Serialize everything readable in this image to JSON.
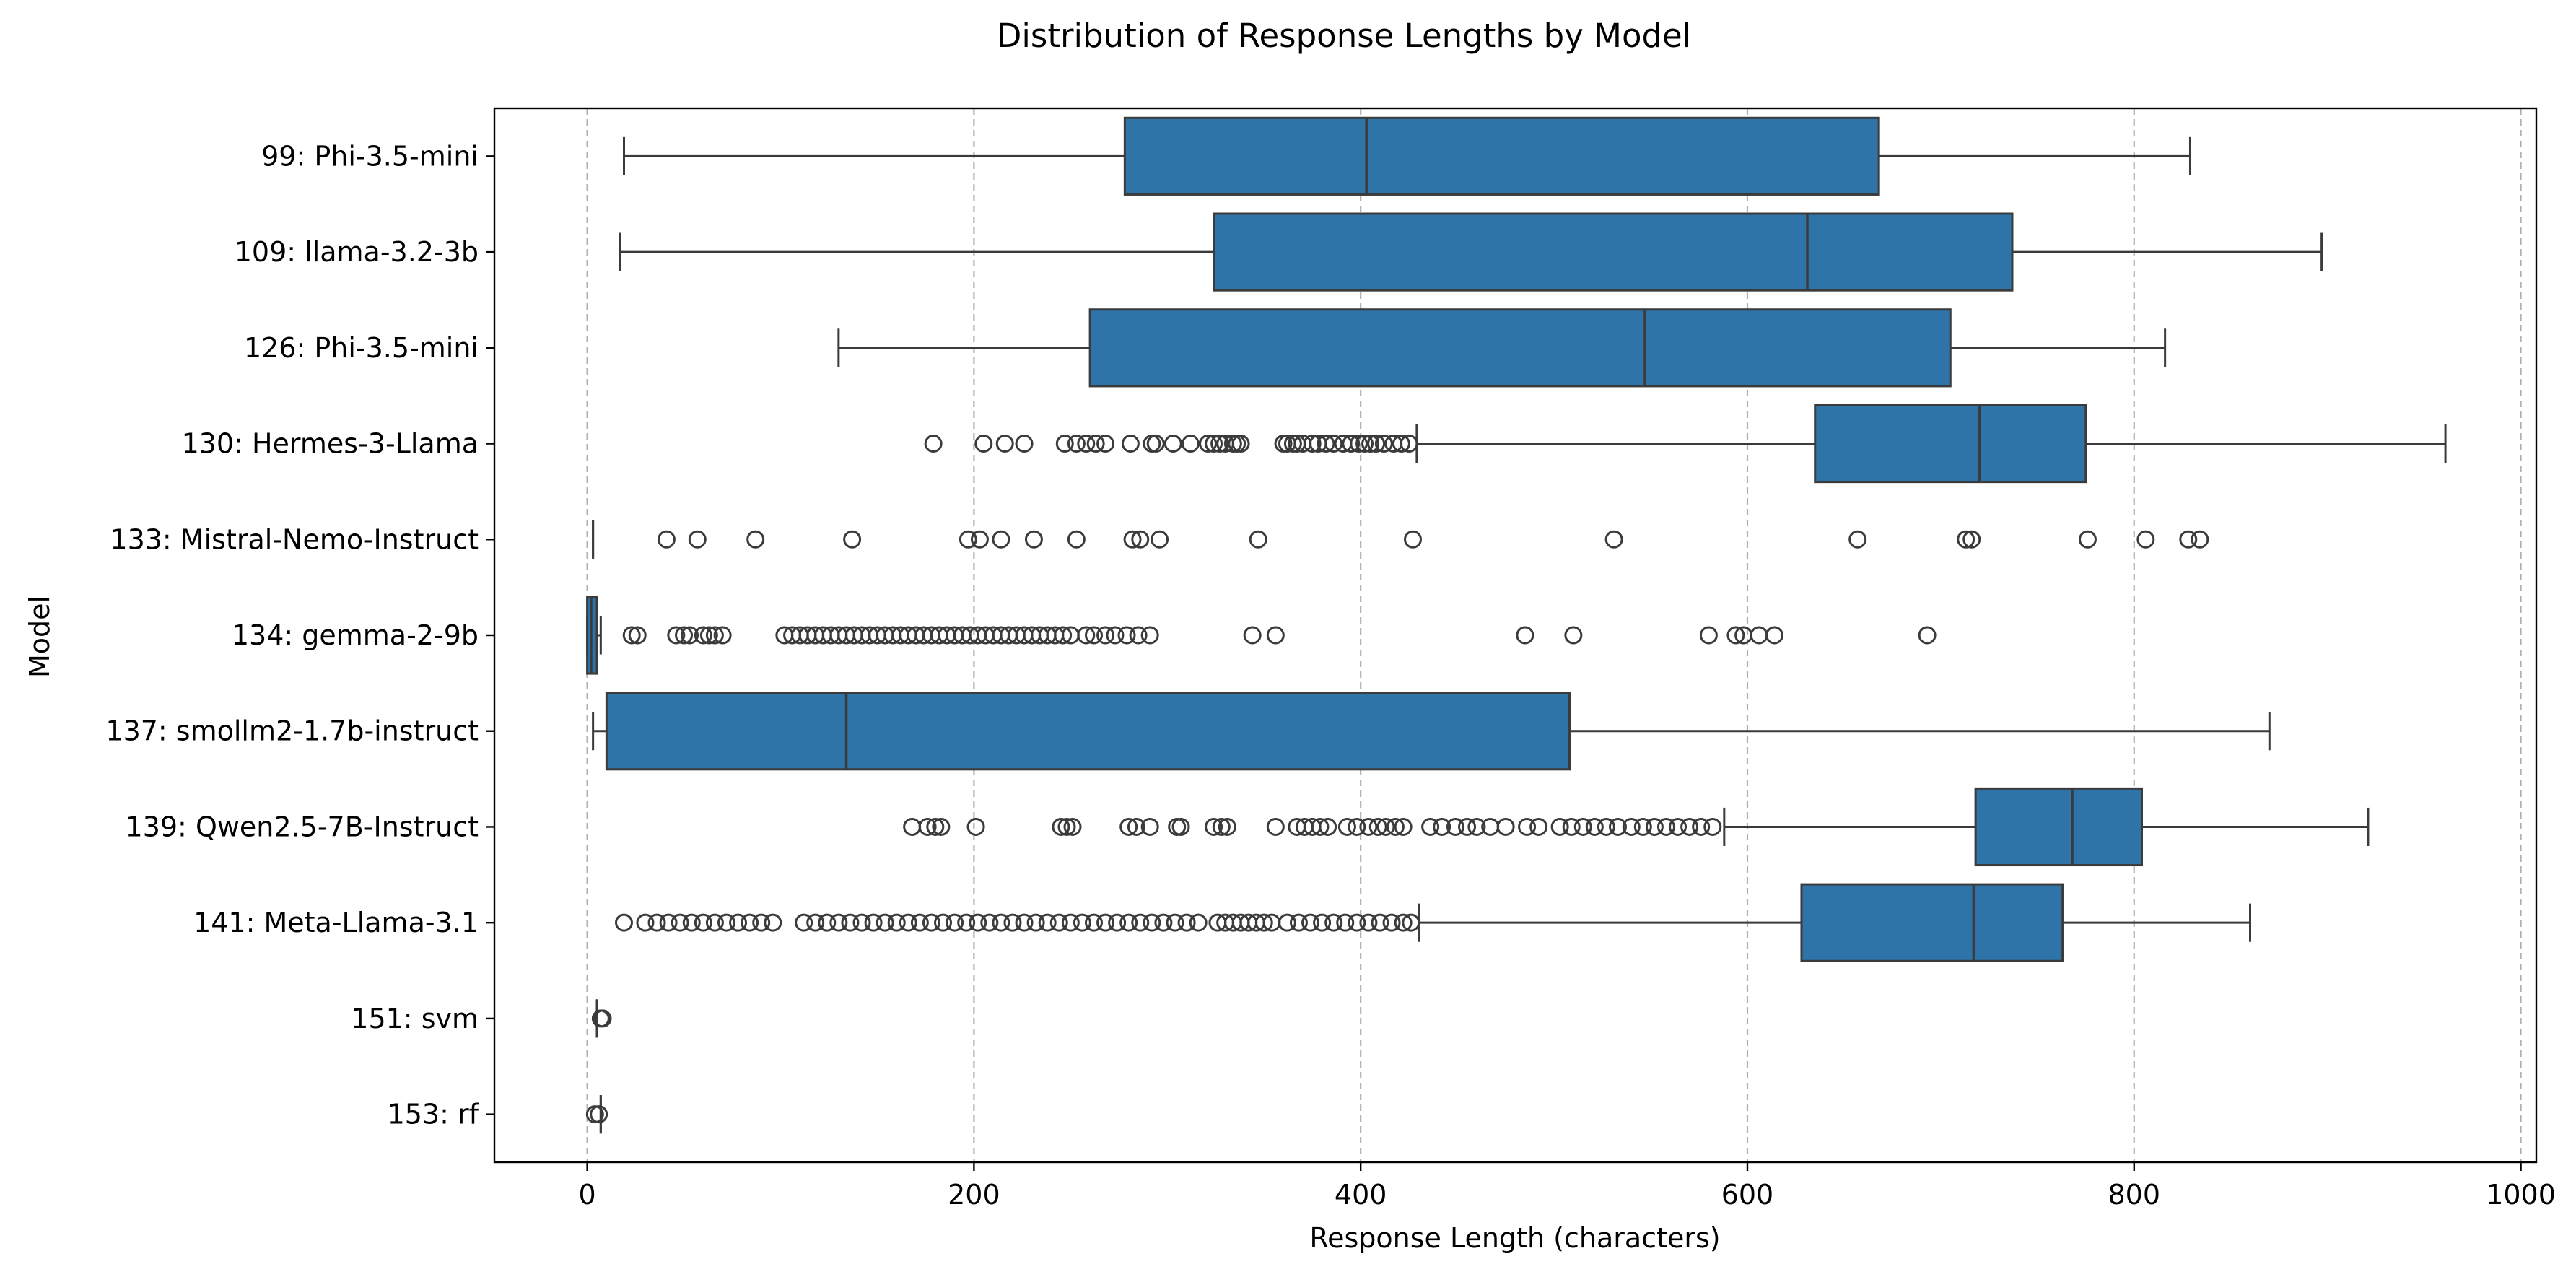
{
  "chart_data": {
    "type": "box",
    "orientation": "horizontal",
    "title": "Distribution of Response Lengths by Model",
    "xlabel": "Response Length (characters)",
    "ylabel": "Model",
    "xlim": [
      -48,
      1008
    ],
    "xticks": [
      0,
      200,
      400,
      600,
      800,
      1000
    ],
    "grid": "x-dashed",
    "box_color": "#2e74a8",
    "edge_color": "#3b3b3b",
    "categories": [
      "99: Phi-3.5-mini",
      "109: llama-3.2-3b",
      "126: Phi-3.5-mini",
      "130: Hermes-3-Llama",
      "133: Mistral-Nemo-Instruct",
      "134: gemma-2-9b",
      "137: smollm2-1.7b-instruct",
      "139: Qwen2.5-7B-Instruct",
      "141: Meta-Llama-3.1",
      "151: svm",
      "153: rf"
    ],
    "boxes": [
      {
        "whislo": 19,
        "q1": 278,
        "med": 403,
        "q3": 668,
        "whishi": 829,
        "fliers": []
      },
      {
        "whislo": 17,
        "q1": 324,
        "med": 631,
        "q3": 737,
        "whishi": 897,
        "fliers": []
      },
      {
        "whislo": 130,
        "q1": 260,
        "med": 547,
        "q3": 705,
        "whishi": 816,
        "fliers": []
      },
      {
        "whislo": 429,
        "q1": 635,
        "med": 720,
        "q3": 775,
        "whishi": 961,
        "fliers": [
          179,
          205,
          216,
          226,
          247,
          253,
          258,
          263,
          268,
          281,
          292,
          294,
          303,
          312,
          321,
          324,
          327,
          330,
          334,
          336,
          338,
          360,
          362,
          365,
          367,
          370,
          375,
          378,
          382,
          386,
          391,
          395,
          399,
          402,
          405,
          408,
          412,
          417,
          421,
          425
        ]
      },
      {
        "whislo": 3,
        "q1": 3,
        "med": 3,
        "q3": 3,
        "whishi": 3,
        "fliers": [
          41,
          57,
          87,
          137,
          197,
          203,
          214,
          231,
          253,
          282,
          286,
          296,
          347,
          427,
          531,
          657,
          713,
          716,
          776,
          806,
          828,
          834
        ]
      },
      {
        "whislo": 0,
        "q1": 0,
        "med": 2,
        "q3": 5,
        "whishi": 7,
        "fliers": [
          23,
          26,
          46,
          50,
          53,
          60,
          63,
          66,
          70,
          102,
          106,
          110,
          114,
          118,
          122,
          126,
          130,
          134,
          138,
          142,
          146,
          150,
          154,
          158,
          162,
          166,
          170,
          174,
          178,
          182,
          186,
          190,
          194,
          198,
          202,
          206,
          210,
          214,
          218,
          222,
          226,
          230,
          234,
          238,
          242,
          246,
          250,
          258,
          262,
          268,
          273,
          279,
          285,
          291,
          344,
          356,
          485,
          510,
          580,
          594,
          598,
          606,
          614,
          693
        ]
      },
      {
        "whislo": 3,
        "q1": 10,
        "med": 134,
        "q3": 508,
        "whishi": 870,
        "fliers": []
      },
      {
        "whislo": 588,
        "q1": 718,
        "med": 768,
        "q3": 804,
        "whishi": 921,
        "fliers": [
          168,
          176,
          180,
          183,
          201,
          245,
          248,
          251,
          280,
          284,
          291,
          305,
          307,
          324,
          328,
          331,
          356,
          367,
          371,
          375,
          379,
          383,
          393,
          398,
          404,
          409,
          413,
          418,
          422,
          436,
          442,
          449,
          455,
          460,
          467,
          475,
          486,
          492,
          503,
          509,
          515,
          521,
          527,
          533,
          540,
          546,
          552,
          558,
          564,
          570,
          576,
          582
        ]
      },
      {
        "whislo": 430,
        "q1": 628,
        "med": 717,
        "q3": 763,
        "whishi": 860,
        "fliers": [
          19,
          30,
          36,
          42,
          48,
          54,
          60,
          66,
          72,
          78,
          84,
          90,
          96,
          112,
          118,
          124,
          130,
          136,
          142,
          148,
          154,
          160,
          166,
          172,
          178,
          184,
          190,
          196,
          202,
          208,
          214,
          220,
          226,
          232,
          238,
          244,
          250,
          256,
          262,
          268,
          274,
          280,
          286,
          292,
          298,
          304,
          310,
          316,
          326,
          330,
          334,
          338,
          342,
          346,
          350,
          354,
          362,
          368,
          374,
          380,
          386,
          392,
          398,
          404,
          410,
          416,
          422,
          426
        ]
      },
      {
        "whislo": 5,
        "q1": 5,
        "med": 5,
        "q3": 5,
        "whishi": 5,
        "fliers": [
          7,
          8
        ]
      },
      {
        "whislo": 7,
        "q1": 7,
        "med": 7,
        "q3": 7,
        "whishi": 7,
        "fliers": [
          4,
          6
        ]
      }
    ]
  }
}
